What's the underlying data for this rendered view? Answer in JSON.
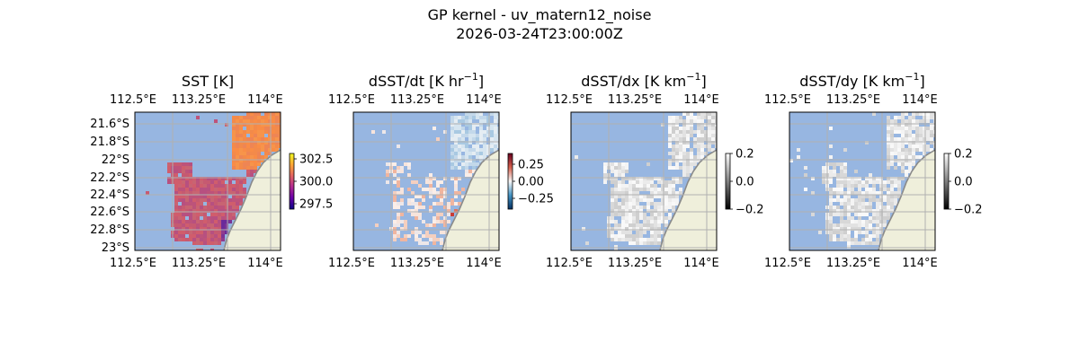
{
  "figure": {
    "title_line1": "GP kernel - uv_matern12_noise",
    "title_line2": "2026-03-24T23:00:00Z"
  },
  "colors": {
    "ocean": "#97b6e1",
    "land": "#efefdb",
    "coast": "#8a8a8a",
    "grid": "#b0b0b0"
  },
  "axes": {
    "lon_ticks": [
      "112.5°E",
      "113.25°E",
      "114°E"
    ],
    "lat_ticks": [
      "21.6°S",
      "21.8°S",
      "22°S",
      "22.2°S",
      "22.4°S",
      "22.6°S",
      "22.8°S",
      "23°S"
    ]
  },
  "panels": [
    {
      "id": "sst",
      "title": "SST [K]",
      "title_unit_sup": "",
      "title_suffix": "",
      "colormap": "plasma",
      "colorbar_ticks": [
        "302.5",
        "300.0",
        "297.5"
      ]
    },
    {
      "id": "dsst-dt",
      "title": "dSST/dt [K hr",
      "title_unit_sup": "−1",
      "title_suffix": "]",
      "colormap": "RdBu_r",
      "colorbar_ticks": [
        "0.25",
        "0.00",
        "−0.25"
      ]
    },
    {
      "id": "dsst-dx",
      "title": "dSST/dx [K km",
      "title_unit_sup": "−1",
      "title_suffix": "]",
      "colormap": "gray",
      "colorbar_ticks": [
        "0.2",
        "0.0",
        "−0.2"
      ]
    },
    {
      "id": "dsst-dy",
      "title": "dSST/dy [K km",
      "title_unit_sup": "−1",
      "title_suffix": "]",
      "colormap": "gray",
      "colorbar_ticks": [
        "0.2",
        "0.0",
        "−0.2"
      ]
    }
  ]
}
